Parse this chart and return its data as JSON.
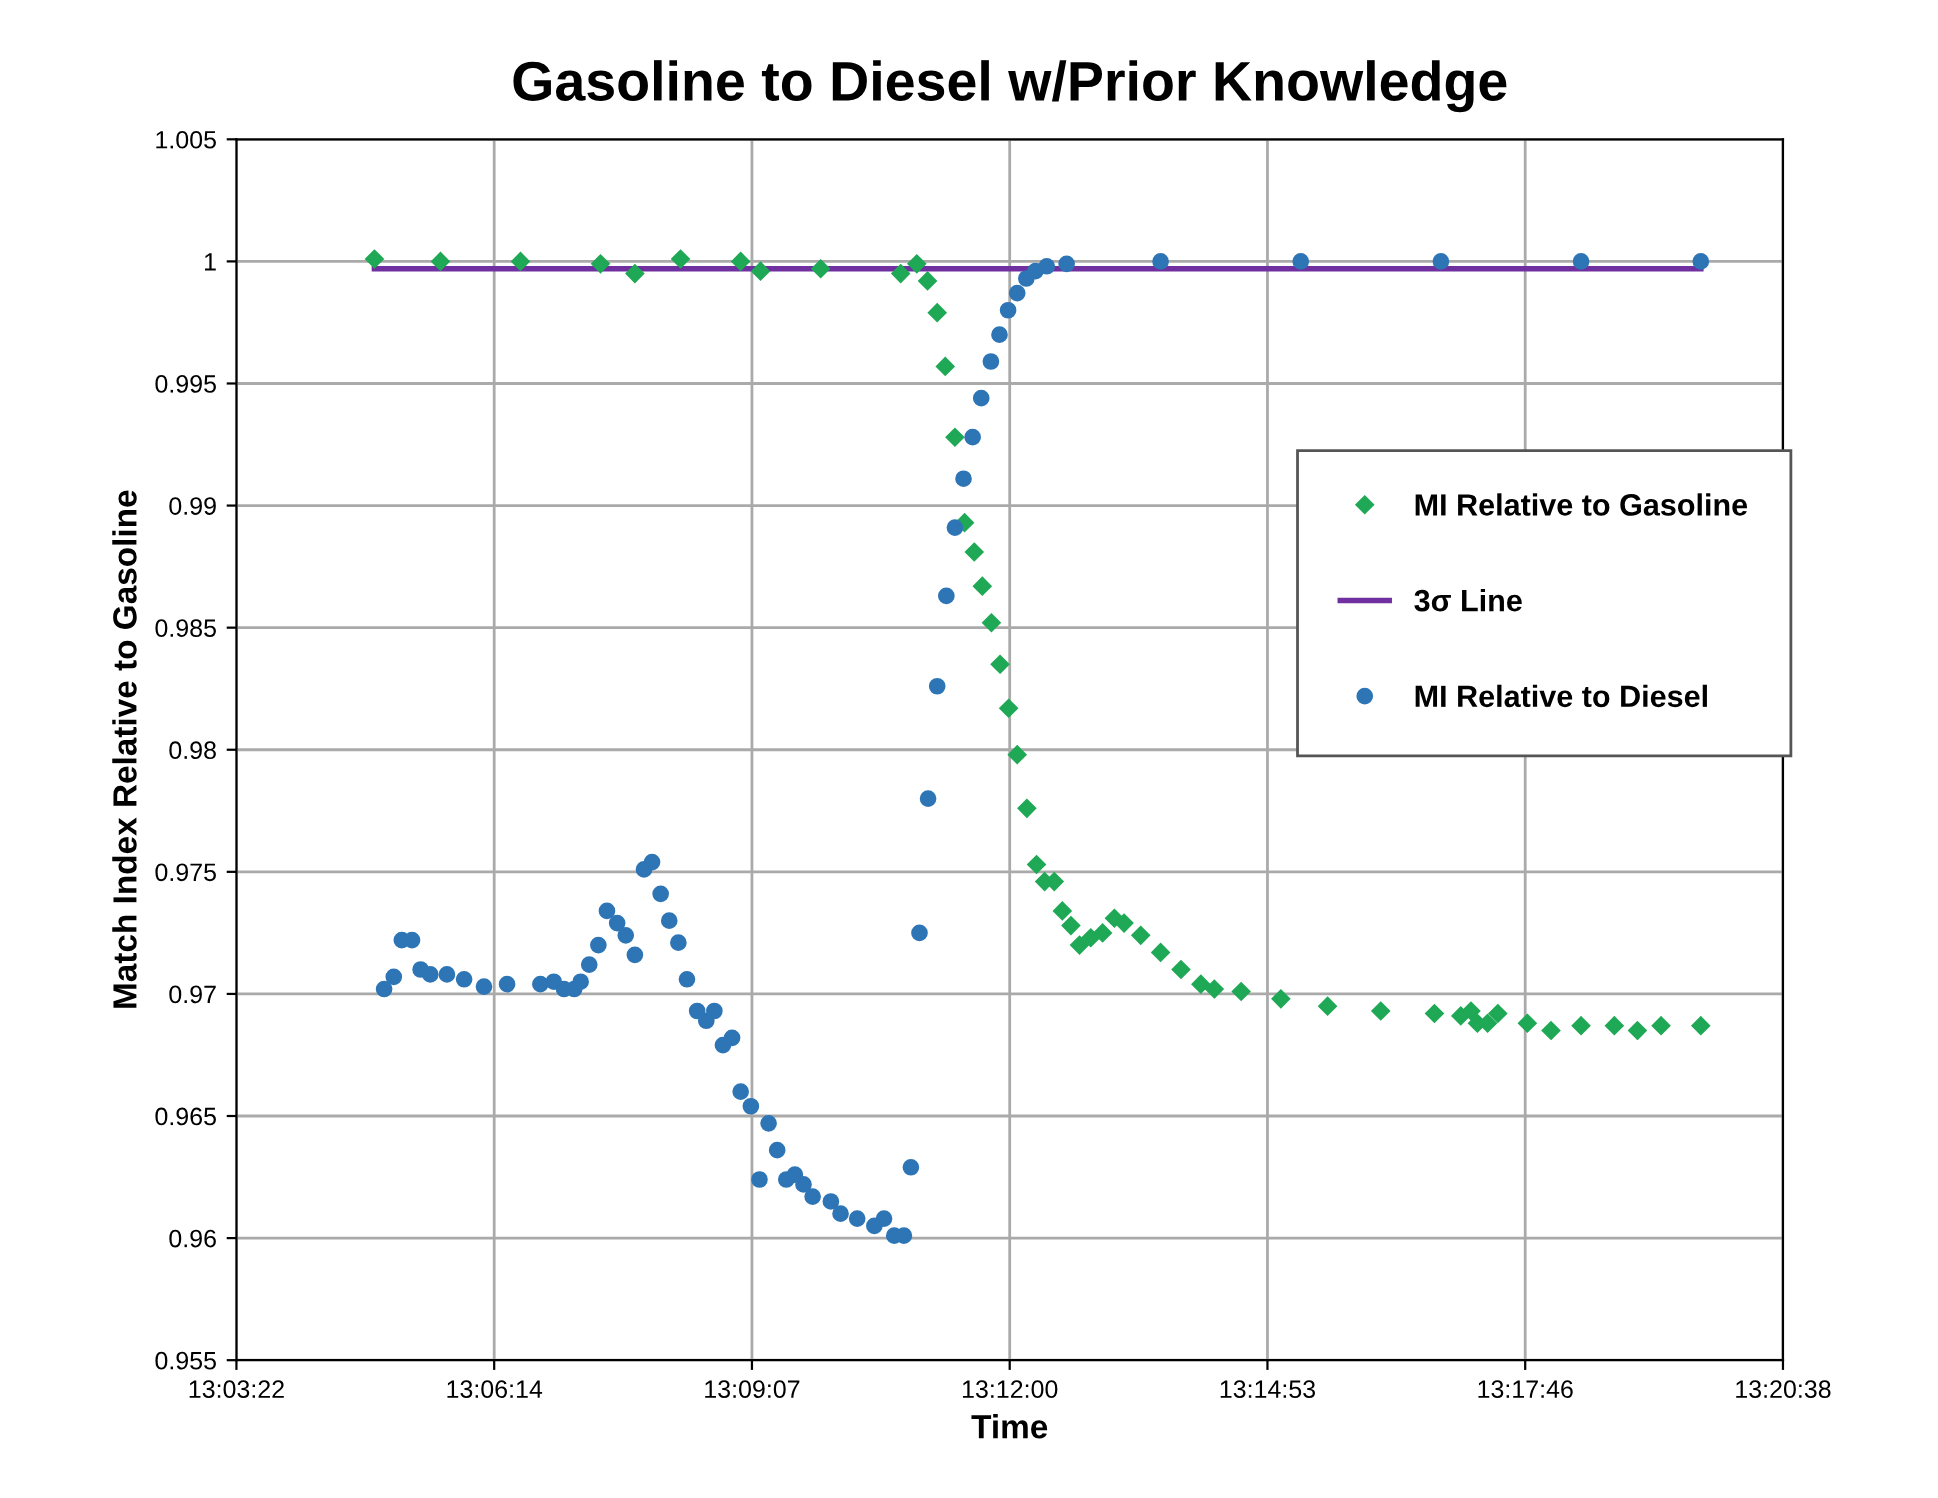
{
  "chart_data": {
    "type": "scatter",
    "title": "Gasoline to Diesel w/Prior Knowledge",
    "xlabel": "Time",
    "ylabel": "Match Index Relative to Gasoline",
    "xlim": [
      13.056,
      13.344
    ],
    "xticks": [
      {
        "value": 13.056,
        "label": "13:03:22"
      },
      {
        "value": 13.104,
        "label": "13:06:14"
      },
      {
        "value": 13.152,
        "label": "13:09:07"
      },
      {
        "value": 13.2,
        "label": "13:12:00"
      },
      {
        "value": 13.248,
        "label": "13:14:53"
      },
      {
        "value": 13.296,
        "label": "13:17:46"
      },
      {
        "value": 13.344,
        "label": "13:20:38"
      }
    ],
    "ylim": [
      0.955,
      1.005
    ],
    "yticks": [
      0.955,
      0.96,
      0.965,
      0.97,
      0.975,
      0.98,
      0.985,
      0.99,
      0.995,
      1,
      1.005
    ],
    "grid": true,
    "legend": "right",
    "series": [
      {
        "name": "MI Relative to Gasoline",
        "marker": "diamond",
        "color": "#1fa855",
        "x": [
          13.0817,
          13.094,
          13.1089,
          13.1238,
          13.1302,
          13.1387,
          13.1499,
          13.1536,
          13.1648,
          13.1797,
          13.1827,
          13.1847,
          13.1865,
          13.188,
          13.1898,
          13.1916,
          13.1934,
          13.1949,
          13.1966,
          13.1982,
          13.1998,
          13.2014,
          13.2032,
          13.205,
          13.2065,
          13.2083,
          13.2098,
          13.2114,
          13.213,
          13.2151,
          13.2173,
          13.2195,
          13.2213,
          13.2244,
          13.2281,
          13.2319,
          13.2356,
          13.2381,
          13.2431,
          13.2505,
          13.2592,
          13.2691,
          13.2791,
          13.284,
          13.2859,
          13.2871,
          13.289,
          13.2909,
          13.2964,
          13.3008,
          13.3064,
          13.3126,
          13.3169,
          13.3213,
          13.3287
        ],
        "values": [
          1.0001,
          1.0,
          1.0,
          0.9999,
          0.9995,
          1.0001,
          1.0,
          0.9996,
          0.9997,
          0.9995,
          0.9999,
          0.9992,
          0.9979,
          0.9957,
          0.9928,
          0.9893,
          0.9881,
          0.9867,
          0.9852,
          0.9835,
          0.9817,
          0.9798,
          0.9776,
          0.9753,
          0.9746,
          0.9746,
          0.9734,
          0.9728,
          0.972,
          0.9723,
          0.9725,
          0.9731,
          0.9729,
          0.9724,
          0.9717,
          0.971,
          0.9704,
          0.9702,
          0.9701,
          0.9698,
          0.9695,
          0.9693,
          0.9692,
          0.9691,
          0.9693,
          0.9688,
          0.9688,
          0.9692,
          0.9688,
          0.9685,
          0.9687,
          0.9687,
          0.9685,
          0.9687,
          0.9687
        ]
      },
      {
        "name": "3σ Line",
        "type": "line",
        "marker": "none",
        "color": "#7030a0",
        "x": [
          13.0817,
          13.3287
        ],
        "values": [
          0.9997,
          0.9997
        ]
      },
      {
        "name": "MI Relative to Diesel",
        "marker": "circle",
        "color": "#2e75b6",
        "x": [
          13.0835,
          13.0853,
          13.0868,
          13.0887,
          13.0903,
          13.0921,
          13.0952,
          13.0984,
          13.1021,
          13.1064,
          13.1126,
          13.1151,
          13.117,
          13.1189,
          13.1201,
          13.1217,
          13.1234,
          13.125,
          13.1269,
          13.1285,
          13.1302,
          13.1319,
          13.1334,
          13.135,
          13.1366,
          13.1383,
          13.1399,
          13.1418,
          13.1435,
          13.145,
          13.1466,
          13.1483,
          13.1499,
          13.1518,
          13.1534,
          13.1551,
          13.1567,
          13.1584,
          13.16,
          13.1616,
          13.1633,
          13.1667,
          13.1685,
          13.1716,
          13.1748,
          13.1766,
          13.1785,
          13.1803,
          13.1816,
          13.1832,
          13.1848,
          13.1865,
          13.1882,
          13.1898,
          13.1914,
          13.1931,
          13.1947,
          13.1965,
          13.1981,
          13.1997,
          13.2014,
          13.2031,
          13.2048,
          13.2069,
          13.2106,
          13.2281,
          13.2542,
          13.2803,
          13.3064,
          13.3287
        ],
        "values": [
          0.9702,
          0.9707,
          0.9722,
          0.9722,
          0.971,
          0.9708,
          0.9708,
          0.9706,
          0.9703,
          0.9704,
          0.9704,
          0.9705,
          0.9702,
          0.9702,
          0.9705,
          0.9712,
          0.972,
          0.9734,
          0.9729,
          0.9724,
          0.9716,
          0.9751,
          0.9754,
          0.9741,
          0.973,
          0.9721,
          0.9706,
          0.9693,
          0.9689,
          0.9693,
          0.9679,
          0.9682,
          0.966,
          0.9654,
          0.9624,
          0.9647,
          0.9636,
          0.9624,
          0.9626,
          0.9622,
          0.9617,
          0.9615,
          0.961,
          0.9608,
          0.9605,
          0.9608,
          0.9601,
          0.9601,
          0.9629,
          0.9725,
          0.978,
          0.9826,
          0.9863,
          0.9891,
          0.9911,
          0.9928,
          0.9944,
          0.9959,
          0.997,
          0.998,
          0.9987,
          0.9993,
          0.9996,
          0.9998,
          0.9999,
          1.0,
          1.0,
          1.0,
          1.0,
          1.0
        ]
      }
    ]
  }
}
